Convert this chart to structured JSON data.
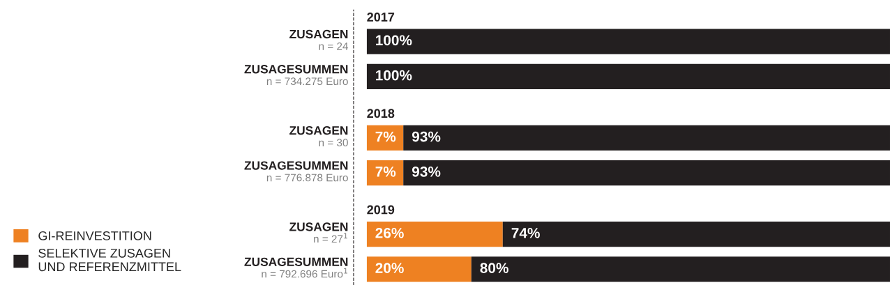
{
  "chart_data": {
    "type": "bar",
    "orientation": "horizontal",
    "stacked": true,
    "categories": [
      "ZUSAGEN\nn = 24",
      "ZUSAGESUMMEN\nn = 734.275 Euro",
      "ZUSAGEN\nn = 30",
      "ZUSAGESUMMEN\nn = 776.878 Euro",
      "ZUSAGEN\nn = 27$^{1}$",
      "ZUSAGESUMMEN\nn = 792.696 Euro$^{1}$"
    ],
    "series": [
      {
        "name": "GI-REINVESTITION",
        "color": "#ee8122",
        "values": [
          null,
          null,
          7,
          7,
          26,
          20
        ],
        "value_labels": [
          null,
          null,
          "7%",
          "7%",
          "26%",
          "20%"
        ]
      },
      {
        "name": "SELEKTIVE ZUSAGEN\nUND REFERENZMITTEL",
        "color": "#231f20",
        "values": [
          100,
          100,
          93,
          93,
          74,
          80
        ],
        "value_labels": [
          "100%",
          "100%",
          "93%",
          "93%",
          "74%",
          "80%"
        ]
      }
    ],
    "annotations": [
      "2017",
      "2018",
      "2019"
    ],
    "xlim": [
      0,
      100
    ],
    "tick_labels": "y",
    "grid": false,
    "legend": "bottom left"
  }
}
